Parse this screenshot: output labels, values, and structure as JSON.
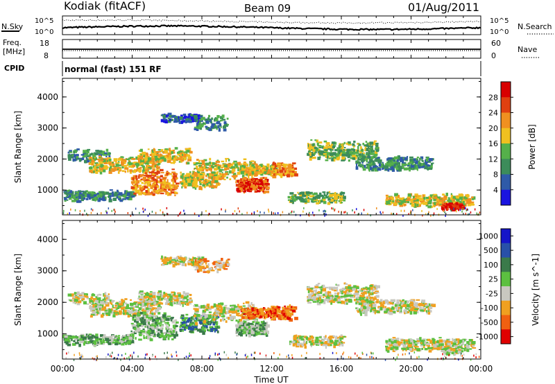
{
  "header": {
    "station": "Kodiak (fitACF)",
    "beam": "Beam 09",
    "date": "01/Aug/2011"
  },
  "colors": {
    "power": [
      "#1a14e0",
      "#2f5aa8",
      "#3c8c5a",
      "#55b04a",
      "#f0c020",
      "#f09020",
      "#e04010",
      "#d80000"
    ],
    "velocity": [
      "#1515c8",
      "#2850a8",
      "#3a7a4a",
      "#5cc040",
      "#c8c8c0",
      "#f0a020",
      "#f06010",
      "#e00000"
    ]
  },
  "chart_data": [
    {
      "type": "line",
      "panel": "noise",
      "left_label": "N.Sky",
      "right_label": "N.Search",
      "left_ticks": [
        "10^5",
        "10^0"
      ],
      "right_ticks": [
        "10^5",
        "10^0"
      ],
      "x": [
        "00:00",
        "04:00",
        "08:00",
        "12:00",
        "16:00",
        "20:00",
        "00:00"
      ],
      "series": []
    },
    {
      "type": "line",
      "panel": "frequency",
      "left_label_1": "Freq.",
      "left_label_2": "[MHz]",
      "right_label": "Nave",
      "left_ticks": [
        "18",
        "8"
      ],
      "right_ticks": [
        "60",
        "0"
      ],
      "series": []
    },
    {
      "type": "table",
      "panel": "cpid",
      "label": "CPID",
      "value": "normal (fast) 151 RF"
    },
    {
      "type": "heatmap",
      "panel": "power",
      "ylabel": "Slant Range [km]",
      "yticks": [
        "1000",
        "2000",
        "3000",
        "4000"
      ],
      "ylim": [
        200,
        4600
      ],
      "colorbar_label": "Power [dB]",
      "colorbar_ticks": [
        "4",
        "8",
        "12",
        "16",
        "20",
        "24",
        "28"
      ]
    },
    {
      "type": "heatmap",
      "panel": "velocity",
      "ylabel": "Slant Range [km]",
      "yticks": [
        "1000",
        "2000",
        "3000",
        "4000"
      ],
      "ylim": [
        200,
        4600
      ],
      "colorbar_label": "Velocity [m s^-1]",
      "colorbar_ticks": [
        "1000",
        "500",
        "100",
        "25",
        "-25",
        "-100",
        "-500",
        "-1000"
      ],
      "xlabel": "Time UT",
      "xticks": [
        "00:00",
        "04:00",
        "08:00",
        "12:00",
        "16:00",
        "20:00",
        "00:00"
      ],
      "xlim": [
        0,
        24
      ]
    }
  ]
}
